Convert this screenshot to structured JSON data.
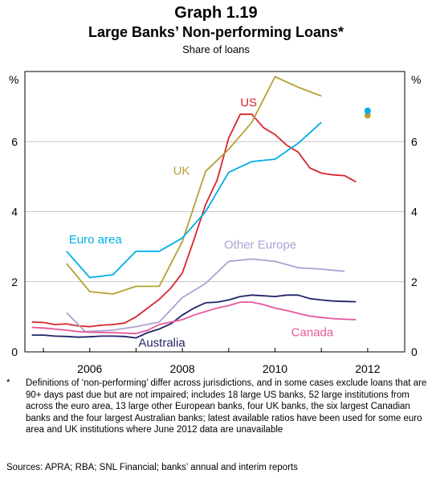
{
  "header": {
    "title": "Graph 1.19",
    "subtitle": "Large Banks’ Non-performing Loans*",
    "unit": "Share of loans"
  },
  "footnote": {
    "marker": "*",
    "text": "Definitions of ‘non-performing’ differ across jurisdictions, and in some cases exclude loans that are 90+ days past due but are not impaired; includes 18 large US banks, 52 large institutions from across the euro area, 13 large other European banks, four UK banks, the six largest Canadian banks and the four largest Australian banks; latest available ratios have been used for some euro area and UK institutions where June 2012 data are unavailable"
  },
  "sources": "Sources: APRA; RBA; SNL Financial; banks’ annual and interim reports",
  "chart_data": {
    "type": "line",
    "title": "Large Banks’ Non-performing Loans*",
    "ylabel_left": "%",
    "ylabel_right": "%",
    "ylim": [
      0,
      8
    ],
    "yticks": [
      0,
      2,
      4,
      6
    ],
    "xlim": [
      2004.6,
      2012.8
    ],
    "xticks": [
      {
        "value": 2006,
        "label": "2006"
      },
      {
        "value": 2008,
        "label": "2008"
      },
      {
        "value": 2010,
        "label": "2010"
      },
      {
        "value": 2012,
        "label": "2012"
      }
    ],
    "grid": "horizontal",
    "series": [
      {
        "name": "US",
        "color": "#d7262e",
        "points": [
          [
            2004.75,
            0.85
          ],
          [
            2005.0,
            0.84
          ],
          [
            2005.25,
            0.78
          ],
          [
            2005.5,
            0.8
          ],
          [
            2005.75,
            0.74
          ],
          [
            2006.0,
            0.72
          ],
          [
            2006.25,
            0.76
          ],
          [
            2006.5,
            0.78
          ],
          [
            2006.75,
            0.82
          ],
          [
            2007.0,
            1.0
          ],
          [
            2007.25,
            1.25
          ],
          [
            2007.5,
            1.5
          ],
          [
            2007.75,
            1.82
          ],
          [
            2008.0,
            2.25
          ],
          [
            2008.25,
            3.2
          ],
          [
            2008.5,
            4.2
          ],
          [
            2008.75,
            4.9
          ],
          [
            2009.0,
            6.1
          ],
          [
            2009.25,
            6.78
          ],
          [
            2009.5,
            6.78
          ],
          [
            2009.75,
            6.4
          ],
          [
            2010.0,
            6.2
          ],
          [
            2010.25,
            5.9
          ],
          [
            2010.5,
            5.7
          ],
          [
            2010.75,
            5.25
          ],
          [
            2011.0,
            5.1
          ],
          [
            2011.25,
            5.05
          ],
          [
            2011.5,
            5.03
          ],
          [
            2011.75,
            4.85
          ]
        ],
        "label": {
          "x": 2009.25,
          "y": 7.0
        }
      },
      {
        "name": "UK",
        "color": "#b5a135",
        "points": [
          [
            2005.5,
            2.52
          ],
          [
            2006.0,
            1.72
          ],
          [
            2006.5,
            1.65
          ],
          [
            2007.0,
            1.87
          ],
          [
            2007.5,
            1.87
          ],
          [
            2008.0,
            3.15
          ],
          [
            2008.5,
            5.15
          ],
          [
            2009.0,
            5.78
          ],
          [
            2009.5,
            6.55
          ],
          [
            2010.0,
            7.85
          ],
          [
            2010.5,
            7.55
          ],
          [
            2011.0,
            7.3
          ]
        ],
        "label": {
          "x": 2007.8,
          "y": 5.05
        },
        "latest": 6.75
      },
      {
        "name": "Euro area",
        "color": "#00aee5",
        "points": [
          [
            2005.5,
            2.87
          ],
          [
            2006.0,
            2.12
          ],
          [
            2006.5,
            2.2
          ],
          [
            2007.0,
            2.87
          ],
          [
            2007.5,
            2.87
          ],
          [
            2008.0,
            3.25
          ],
          [
            2008.5,
            4.0
          ],
          [
            2009.0,
            5.12
          ],
          [
            2009.5,
            5.43
          ],
          [
            2010.0,
            5.5
          ],
          [
            2010.5,
            5.95
          ],
          [
            2011.0,
            6.55
          ]
        ],
        "label": {
          "x": 2005.55,
          "y": 3.1
        },
        "latest": 6.88
      },
      {
        "name": "Other Europe",
        "color": "#a9a3d3",
        "points": [
          [
            2005.5,
            1.12
          ],
          [
            2005.9,
            0.58
          ],
          [
            2006.5,
            0.62
          ],
          [
            2007.0,
            0.72
          ],
          [
            2007.5,
            0.85
          ],
          [
            2008.0,
            1.55
          ],
          [
            2008.5,
            1.95
          ],
          [
            2009.0,
            2.58
          ],
          [
            2009.5,
            2.65
          ],
          [
            2010.0,
            2.58
          ],
          [
            2010.5,
            2.4
          ],
          [
            2011.0,
            2.36
          ],
          [
            2011.5,
            2.3
          ]
        ],
        "label": {
          "x": 2008.9,
          "y": 2.95
        }
      },
      {
        "name": "Australia",
        "color": "#1f2467",
        "points": [
          [
            2004.75,
            0.48
          ],
          [
            2005.0,
            0.48
          ],
          [
            2005.25,
            0.45
          ],
          [
            2005.5,
            0.44
          ],
          [
            2005.75,
            0.42
          ],
          [
            2006.0,
            0.43
          ],
          [
            2006.25,
            0.45
          ],
          [
            2006.5,
            0.45
          ],
          [
            2006.75,
            0.44
          ],
          [
            2007.0,
            0.4
          ],
          [
            2007.25,
            0.55
          ],
          [
            2007.5,
            0.65
          ],
          [
            2007.75,
            0.8
          ],
          [
            2008.0,
            1.05
          ],
          [
            2008.25,
            1.25
          ],
          [
            2008.5,
            1.4
          ],
          [
            2008.75,
            1.42
          ],
          [
            2009.0,
            1.48
          ],
          [
            2009.25,
            1.58
          ],
          [
            2009.5,
            1.62
          ],
          [
            2009.75,
            1.6
          ],
          [
            2010.0,
            1.58
          ],
          [
            2010.25,
            1.62
          ],
          [
            2010.5,
            1.62
          ],
          [
            2010.75,
            1.52
          ],
          [
            2011.0,
            1.48
          ],
          [
            2011.25,
            1.45
          ],
          [
            2011.5,
            1.44
          ],
          [
            2011.75,
            1.43
          ]
        ],
        "label": {
          "x": 2007.05,
          "y": 0.15
        }
      },
      {
        "name": "Canada",
        "color": "#e5579b",
        "points": [
          [
            2004.75,
            0.7
          ],
          [
            2005.0,
            0.68
          ],
          [
            2005.25,
            0.65
          ],
          [
            2005.5,
            0.62
          ],
          [
            2005.75,
            0.58
          ],
          [
            2006.0,
            0.56
          ],
          [
            2006.5,
            0.55
          ],
          [
            2007.0,
            0.52
          ],
          [
            2007.25,
            0.62
          ],
          [
            2007.5,
            0.78
          ],
          [
            2007.75,
            0.85
          ],
          [
            2008.0,
            0.92
          ],
          [
            2008.25,
            1.05
          ],
          [
            2008.5,
            1.15
          ],
          [
            2008.75,
            1.25
          ],
          [
            2009.0,
            1.32
          ],
          [
            2009.25,
            1.42
          ],
          [
            2009.5,
            1.42
          ],
          [
            2009.75,
            1.35
          ],
          [
            2010.0,
            1.25
          ],
          [
            2010.25,
            1.18
          ],
          [
            2010.5,
            1.1
          ],
          [
            2010.75,
            1.02
          ],
          [
            2011.0,
            0.98
          ],
          [
            2011.25,
            0.95
          ],
          [
            2011.5,
            0.93
          ],
          [
            2011.75,
            0.92
          ]
        ],
        "label": {
          "x": 2010.35,
          "y": 0.45
        }
      }
    ]
  }
}
